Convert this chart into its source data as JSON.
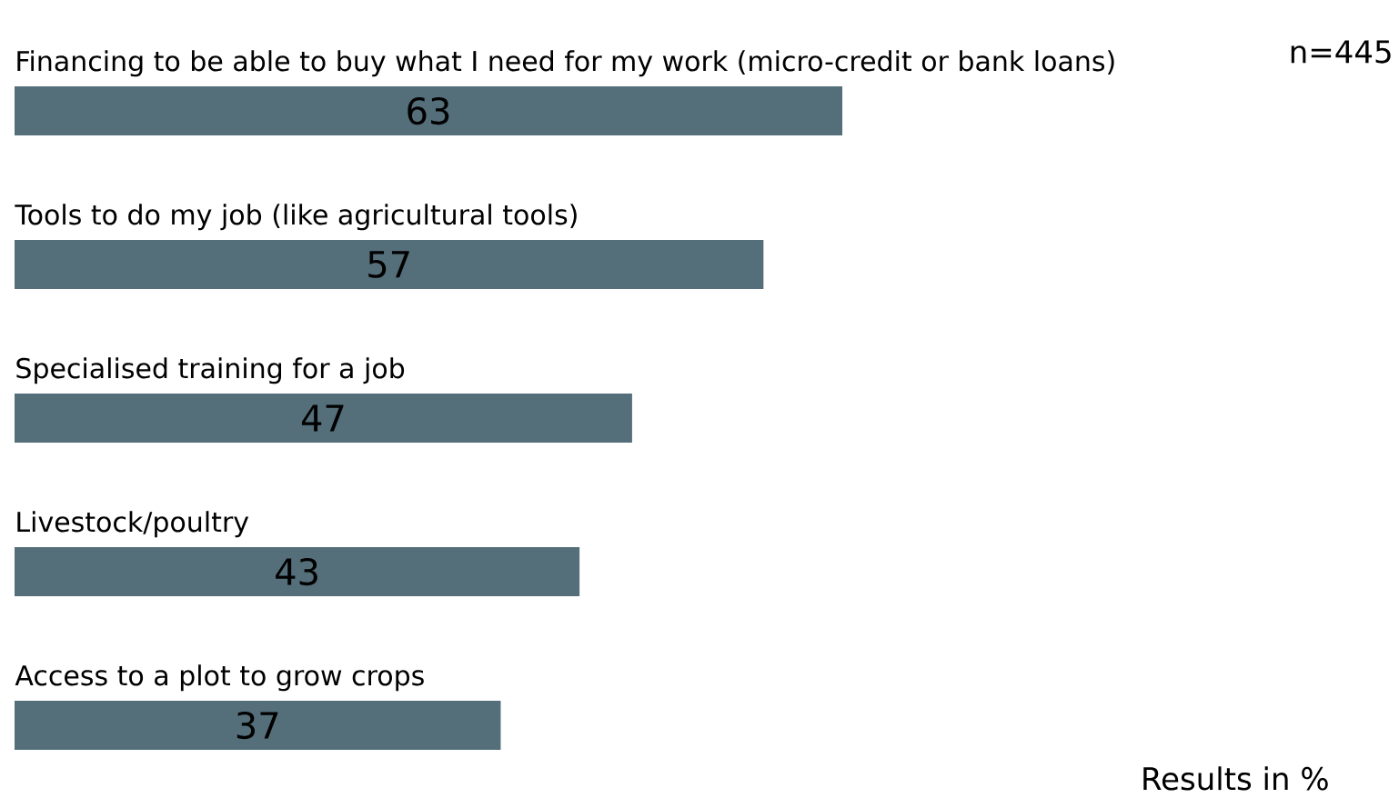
{
  "chart_data": {
    "type": "bar",
    "orientation": "horizontal",
    "categories": [
      "Financing to be able to buy what I need for my work (micro-credit or bank loans)",
      "Tools to do my job (like agricultural tools)",
      "Specialised training for a job",
      "Livestock/poultry",
      "Access to a plot to grow crops"
    ],
    "values": [
      63,
      57,
      47,
      43,
      37
    ],
    "color": "#546e7a",
    "data_labels": true,
    "annotations": [
      "n=445",
      "Results in %"
    ]
  }
}
